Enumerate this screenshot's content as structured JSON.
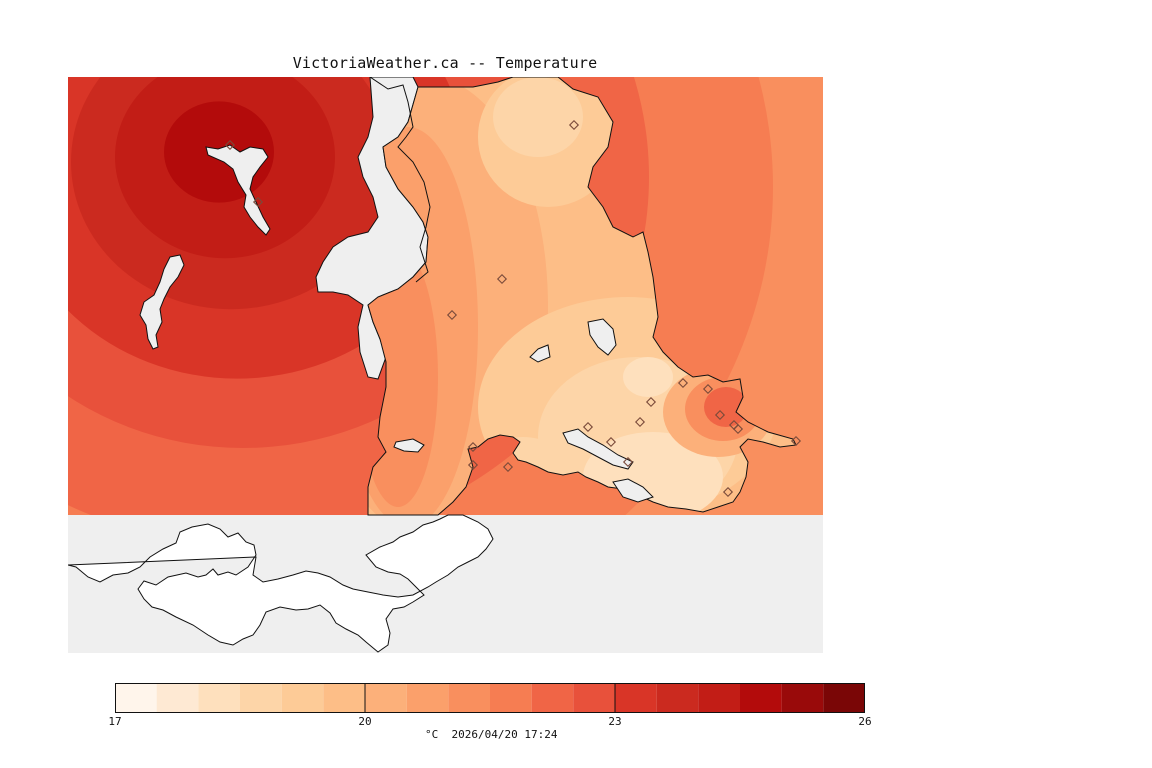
{
  "title": "VictoriaWeather.ca -- Temperature",
  "caption": "°C  2026/04/20 17:24",
  "colors": {
    "ocean": "#efefef",
    "land_unmapped": "#ffffff",
    "coastline": "#111111",
    "station_marker": "#7a4a3a"
  },
  "legend": {
    "min": 17,
    "max": 26,
    "tick_labels": [
      "17",
      "20",
      "23",
      "26"
    ],
    "bins": [
      {
        "from": 17.0,
        "to": 17.5,
        "color": "#fff5eb"
      },
      {
        "from": 17.5,
        "to": 18.0,
        "color": "#fee9d3"
      },
      {
        "from": 18.0,
        "to": 18.5,
        "color": "#fee0bd"
      },
      {
        "from": 18.5,
        "to": 19.0,
        "color": "#fdd5a8"
      },
      {
        "from": 19.0,
        "to": 19.5,
        "color": "#fdcb97"
      },
      {
        "from": 19.5,
        "to": 20.0,
        "color": "#fdbe87"
      },
      {
        "from": 20.0,
        "to": 20.5,
        "color": "#fcb07a"
      },
      {
        "from": 20.5,
        "to": 21.0,
        "color": "#fba06b"
      },
      {
        "from": 21.0,
        "to": 21.5,
        "color": "#f98f5e"
      },
      {
        "from": 21.5,
        "to": 22.0,
        "color": "#f67d52"
      },
      {
        "from": 22.0,
        "to": 22.5,
        "color": "#f06546"
      },
      {
        "from": 22.5,
        "to": 23.0,
        "color": "#e8513b"
      },
      {
        "from": 23.0,
        "to": 23.5,
        "color": "#d93527"
      },
      {
        "from": 23.5,
        "to": 24.0,
        "color": "#cb2a1f"
      },
      {
        "from": 24.0,
        "to": 24.5,
        "color": "#c21d16"
      },
      {
        "from": 24.5,
        "to": 25.0,
        "color": "#b30b0b"
      },
      {
        "from": 25.0,
        "to": 25.5,
        "color": "#990a0a"
      },
      {
        "from": 25.5,
        "to": 26.0,
        "color": "#7a0606"
      }
    ]
  },
  "map": {
    "field_type": "interpolated temperature contours",
    "hotspots": [
      {
        "region": "north-west",
        "peak_c": 25.0
      },
      {
        "region": "east shore",
        "peak_c": 22.5
      }
    ],
    "station_count": 20
  }
}
